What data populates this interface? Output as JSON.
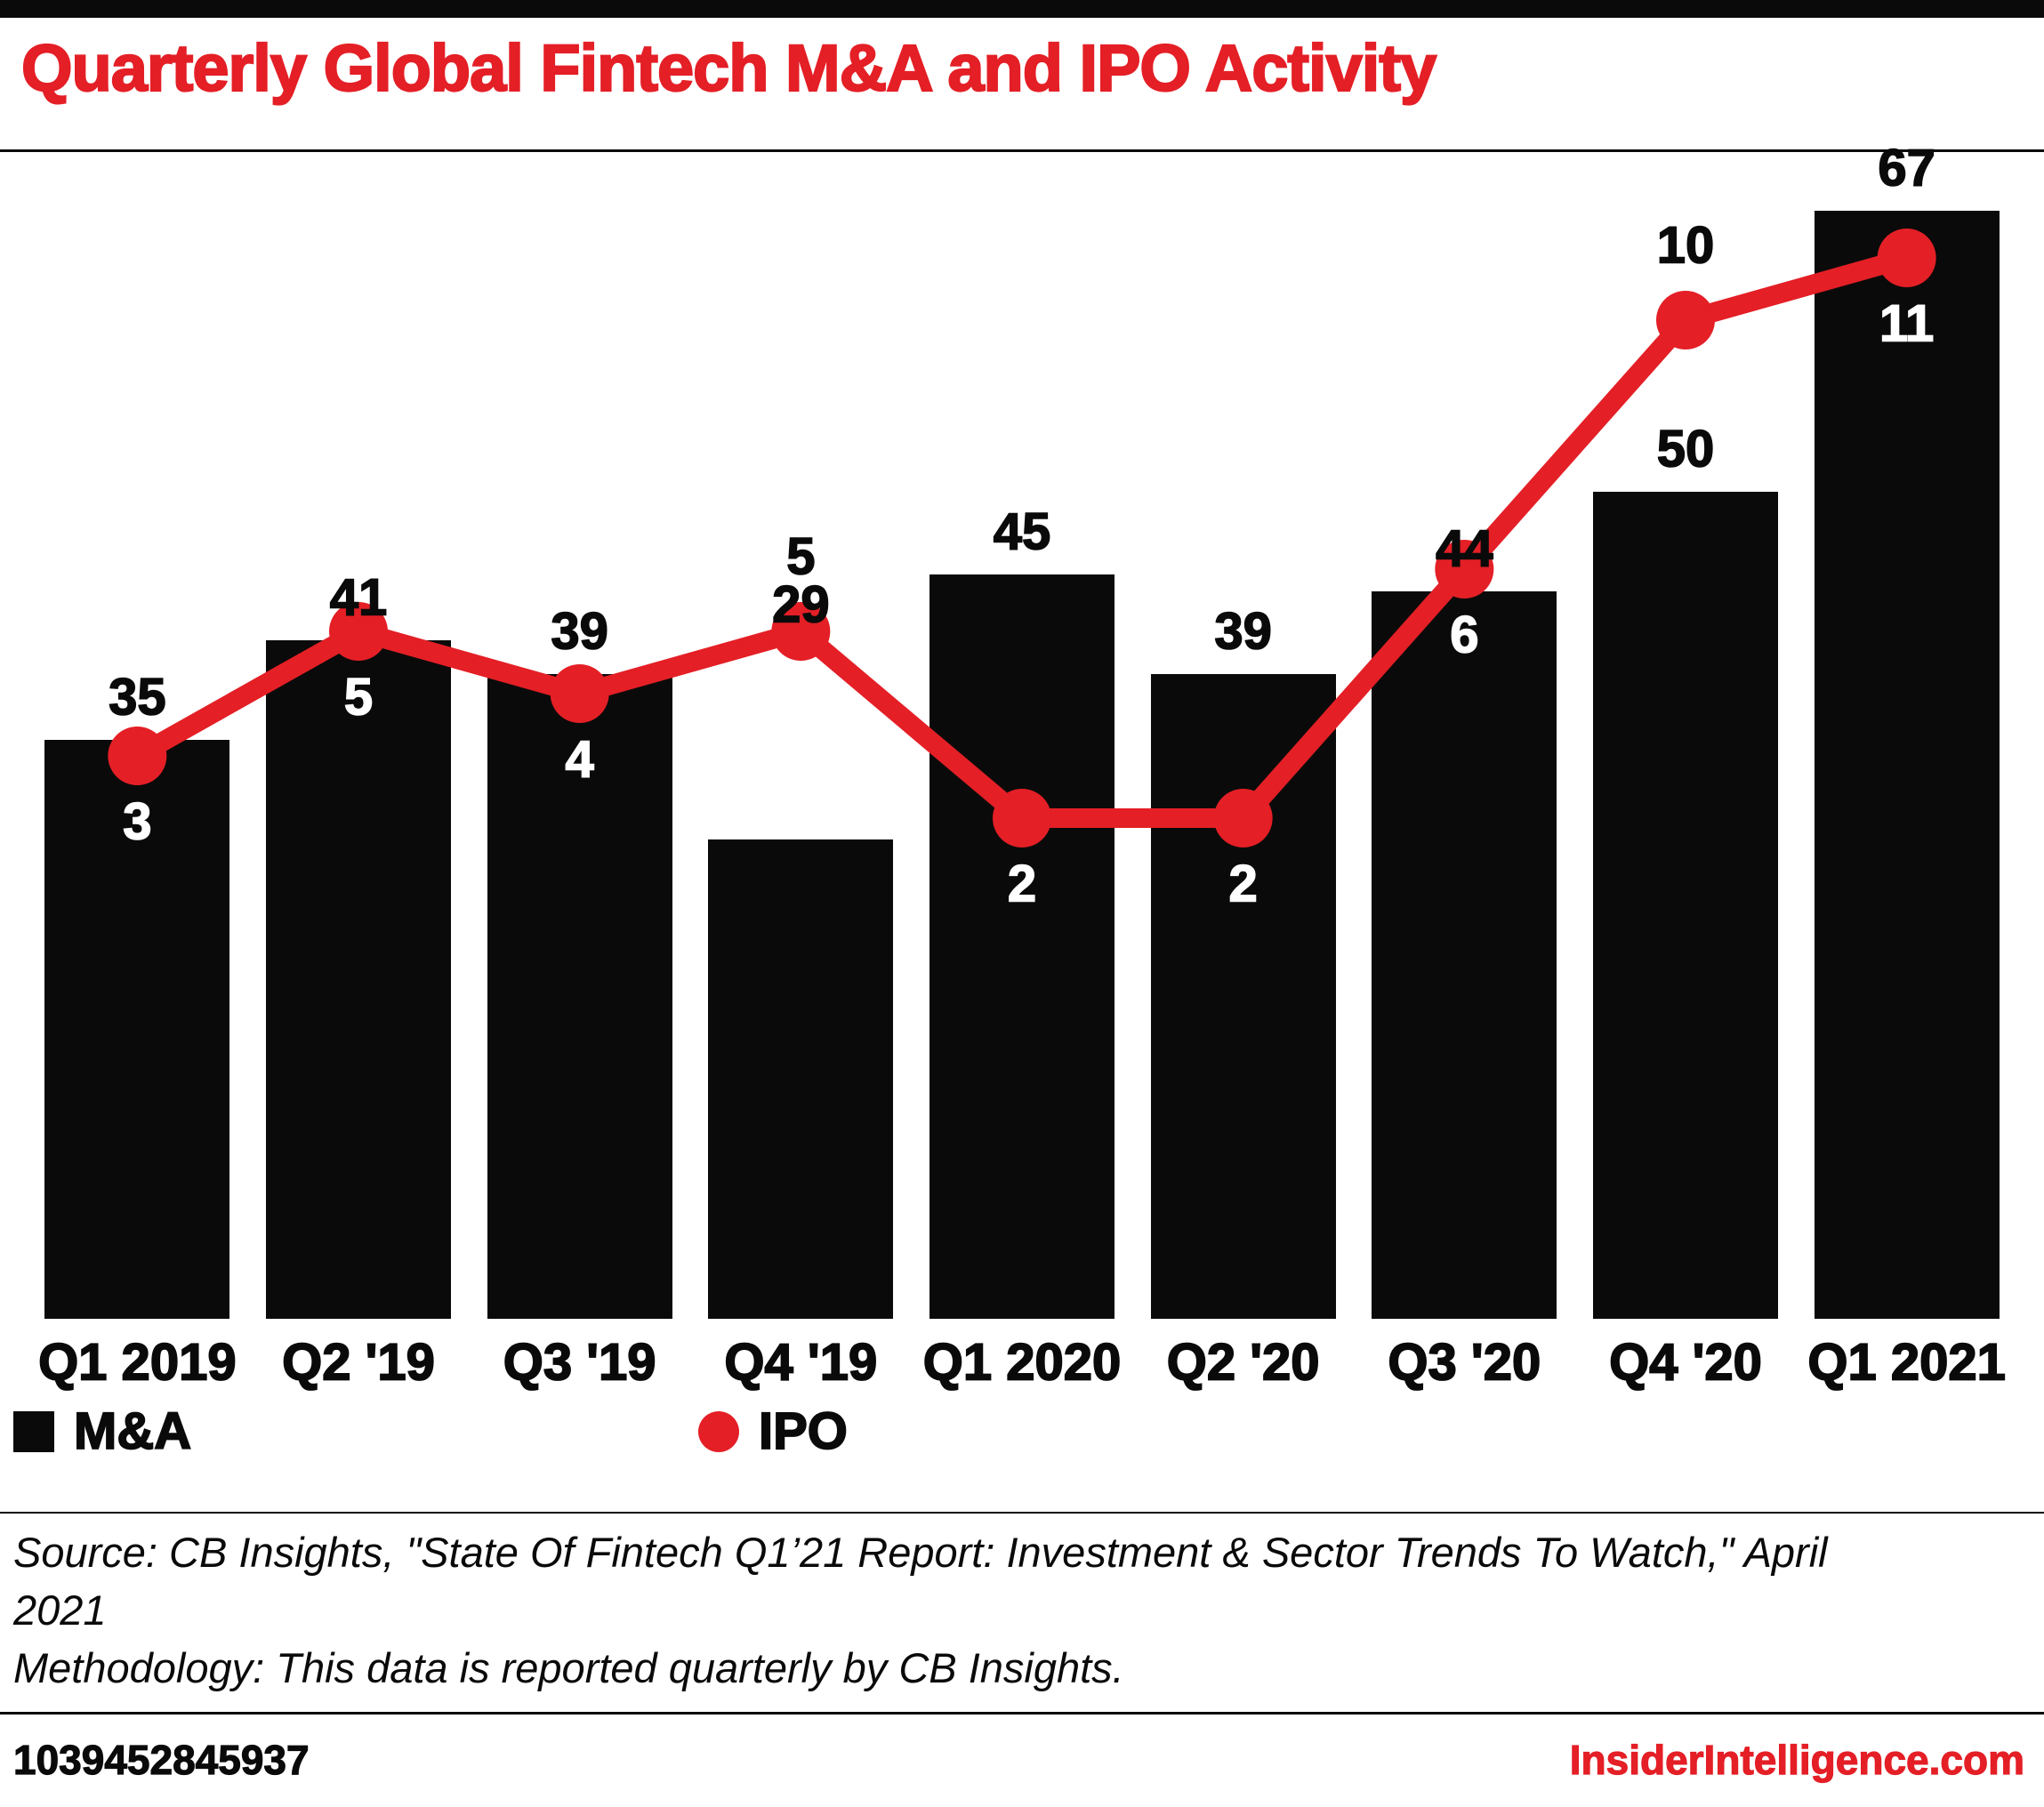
{
  "title": "Quarterly Global Fintech M&A and IPO Activity",
  "chart_data": {
    "type": "bar",
    "title": "Quarterly Global Fintech M&A and IPO Activity",
    "categories": [
      "Q1 2019",
      "Q2 '19",
      "Q3 '19",
      "Q4 '19",
      "Q1 2020",
      "Q2 '20",
      "Q3 '20",
      "Q4 '20",
      "Q1 2021"
    ],
    "series": [
      {
        "name": "M&A",
        "type": "bar",
        "color": "#0a0a0a",
        "values": [
          35,
          41,
          39,
          29,
          45,
          39,
          44,
          50,
          67
        ]
      },
      {
        "name": "IPO",
        "type": "line",
        "color": "#e41f26",
        "values": [
          3,
          5,
          4,
          5,
          2,
          2,
          6,
          10,
          11
        ],
        "label_positions": [
          "below",
          "below",
          "below",
          "above",
          "below",
          "below",
          "below",
          "above",
          "below"
        ],
        "label_colors": [
          "#ffffff",
          "#ffffff",
          "#ffffff",
          "#0a0a0a",
          "#ffffff",
          "#ffffff",
          "#ffffff",
          "#0a0a0a",
          "#ffffff"
        ]
      }
    ],
    "xlabel": "",
    "ylabel": "",
    "ylim": [
      0,
      70
    ],
    "grid": false,
    "legend_position": "bottom",
    "bar_label_color": "#0a0a0a",
    "layout_hints": {
      "bar_label_overrides": {
        "3": "above_dot"
      }
    }
  },
  "source": {
    "source_text": "Source: CB Insights, \"State Of Fintech Q1’21 Report: Investment & Sector Trends To Watch,\" April 2021",
    "methodology_text": "Methodology: This data is reported quarterly by CB Insights."
  },
  "footer": {
    "id": "1039452845937",
    "brand": "InsiderIntelligence.com"
  },
  "colors": {
    "accent_red": "#e41f26",
    "black": "#0a0a0a",
    "background": "#ffffff"
  }
}
